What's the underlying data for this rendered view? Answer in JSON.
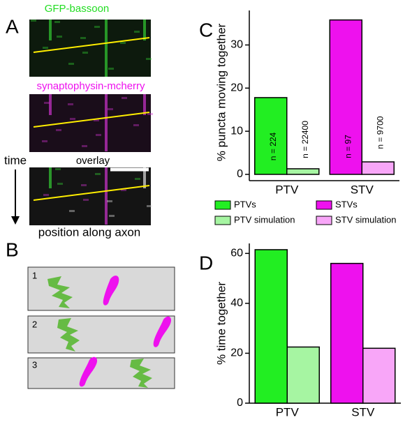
{
  "panels": {
    "A": {
      "label": "A",
      "channels": [
        "GFP-bassoon",
        "synaptophysin-mcherry",
        "overlay"
      ],
      "time": "time",
      "position": "position along axon"
    },
    "B": {
      "label": "B",
      "rows": [
        "1",
        "2",
        "3"
      ]
    }
  },
  "chart_data": [
    {
      "type": "bar",
      "label": "C",
      "ylabel": "% puncta moving together",
      "categories": [
        "PTV",
        "STV"
      ],
      "series": [
        {
          "name": "PTVs",
          "color": "#22ee22",
          "values": [
            17.8,
            null
          ],
          "n_labels": [
            "n = 224",
            null
          ]
        },
        {
          "name": "PTV simulation",
          "color": "#a6f5a2",
          "values": [
            1.3,
            null
          ],
          "n_labels": [
            "n = 22400",
            null
          ]
        },
        {
          "name": "STVs",
          "color": "#ee11ee",
          "values": [
            null,
            35.8
          ],
          "n_labels": [
            null,
            "n = 97"
          ]
        },
        {
          "name": "STV simulation",
          "color": "#f8a6f8",
          "values": [
            null,
            2.9
          ],
          "n_labels": [
            null,
            "n = 9700"
          ]
        }
      ],
      "ylim": [
        0,
        38
      ],
      "yticks": [
        0,
        10,
        20,
        30
      ],
      "legend": true
    },
    {
      "type": "bar",
      "label": "D",
      "ylabel": "% time together",
      "categories": [
        "PTV",
        "STV"
      ],
      "series": [
        {
          "name": "PTVs",
          "color": "#22ee22",
          "values": [
            61.5,
            null
          ]
        },
        {
          "name": "PTV simulation",
          "color": "#a6f5a2",
          "values": [
            22.5,
            null
          ]
        },
        {
          "name": "STVs",
          "color": "#ee11ee",
          "values": [
            null,
            56
          ]
        },
        {
          "name": "STV simulation",
          "color": "#f8a6f8",
          "values": [
            null,
            22
          ]
        }
      ],
      "ylim": [
        0,
        64
      ],
      "yticks": [
        0,
        20,
        40,
        60
      ],
      "legend": false
    }
  ]
}
